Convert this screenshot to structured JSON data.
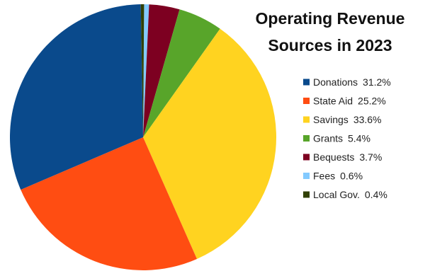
{
  "chart_data": {
    "type": "pie",
    "title": [
      "Operating Revenue",
      "Sources in 2023"
    ],
    "series": [
      {
        "label": "Donations",
        "value": 31.2,
        "value_text": "31.2%",
        "color": "#0a4a8c"
      },
      {
        "label": "State Aid",
        "value": 25.2,
        "value_text": "25.2%",
        "color": "#ff4d12"
      },
      {
        "label": "Savings",
        "value": 33.6,
        "value_text": "33.6%",
        "color": "#ffd320"
      },
      {
        "label": "Grants",
        "value": 5.4,
        "value_text": "5.4%",
        "color": "#58a52a"
      },
      {
        "label": "Bequests",
        "value": 3.7,
        "value_text": "3.7%",
        "color": "#7d0021"
      },
      {
        "label": "Fees",
        "value": 0.6,
        "value_text": "0.6%",
        "color": "#83caff"
      },
      {
        "label": "Local Gov.",
        "value": 0.4,
        "value_text": "0.4%",
        "color": "#314004"
      }
    ],
    "legend_position": "right"
  }
}
